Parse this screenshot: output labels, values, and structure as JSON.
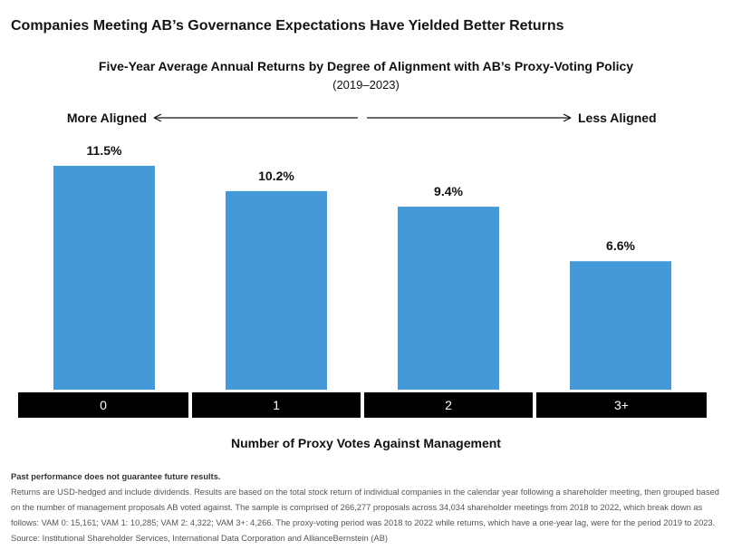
{
  "header": {
    "title": "Companies Meeting AB’s Governance Expectations Have Yielded Better Returns"
  },
  "chart_data": {
    "type": "bar",
    "title": "Five-Year Average Annual Returns by Degree of Alignment with AB’s Proxy-Voting Policy",
    "subtitle": "(2019–2023)",
    "categories": [
      "0",
      "1",
      "2",
      "3+"
    ],
    "values": [
      11.5,
      10.2,
      9.4,
      6.6
    ],
    "value_labels": [
      "11.5%",
      "10.2%",
      "9.4%",
      "6.6%"
    ],
    "xlabel": "Number of Proxy Votes Against Management",
    "ylabel": "",
    "ylim": [
      0,
      11.5
    ],
    "grid": false,
    "legend": "none",
    "alignment_scale": {
      "left_label": "More Aligned",
      "right_label": "Less Aligned"
    },
    "colors": {
      "bar": "#4499D8",
      "category_band": "#000000",
      "category_text": "#ffffff"
    }
  },
  "notes": {
    "disclaimer": "Past performance does not guarantee future results.",
    "body": "Returns are USD-hedged and include dividends. Results are based on the total stock return of individual companies in the calendar year following a shareholder meeting, then grouped based on the number of management proposals AB voted against. The sample is comprised of 266,277 proposals across 34,034 shareholder meetings from 2018 to 2022, which break down as follows: VAM 0: 15,161; VAM 1: 10,285; VAM 2: 4,322; VAM 3+: 4,266. The proxy-voting period was 2018 to 2022 while returns, which have a one-year lag, were for the period 2019 to 2023.",
    "source": "Source:  Institutional Shareholder Services, International Data Corporation and AllianceBernstein (AB)"
  }
}
